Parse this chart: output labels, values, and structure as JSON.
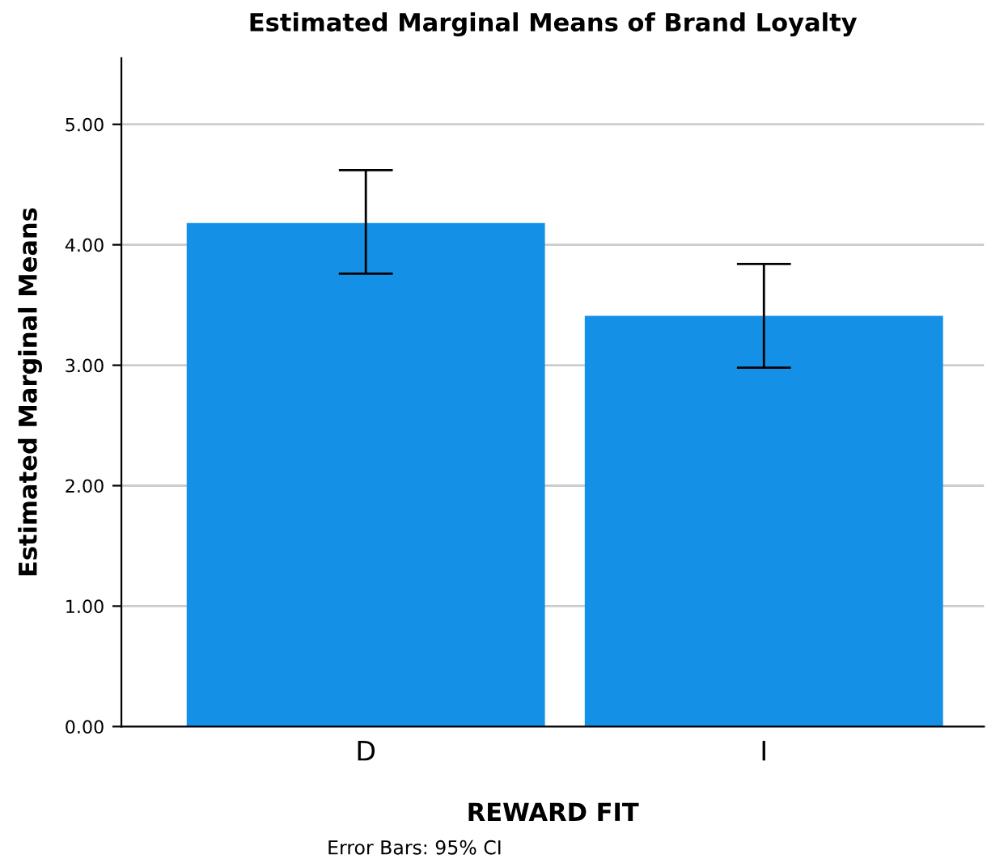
{
  "chart_data": {
    "type": "bar",
    "title": "Estimated Marginal Means of Brand Loyalty",
    "xlabel": "REWARD FIT",
    "ylabel": "Estimated Marginal Means",
    "categories": [
      "D",
      "I"
    ],
    "values": [
      4.18,
      3.41
    ],
    "color": "#1490e6",
    "errors": [
      [
        3.76,
        4.62
      ],
      [
        2.98,
        3.84
      ]
    ],
    "ylim": [
      0,
      5.55
    ],
    "yticks": [
      {
        "value": 0,
        "label": "0.00"
      },
      {
        "value": 1,
        "label": "1.00"
      },
      {
        "value": 2,
        "label": "2.00"
      },
      {
        "value": 3,
        "label": "3.00"
      },
      {
        "value": 4,
        "label": "4.00"
      },
      {
        "value": 5,
        "label": "5.00"
      }
    ],
    "grid": "y",
    "annotations": [
      "Error Bars: 95% CI"
    ]
  }
}
